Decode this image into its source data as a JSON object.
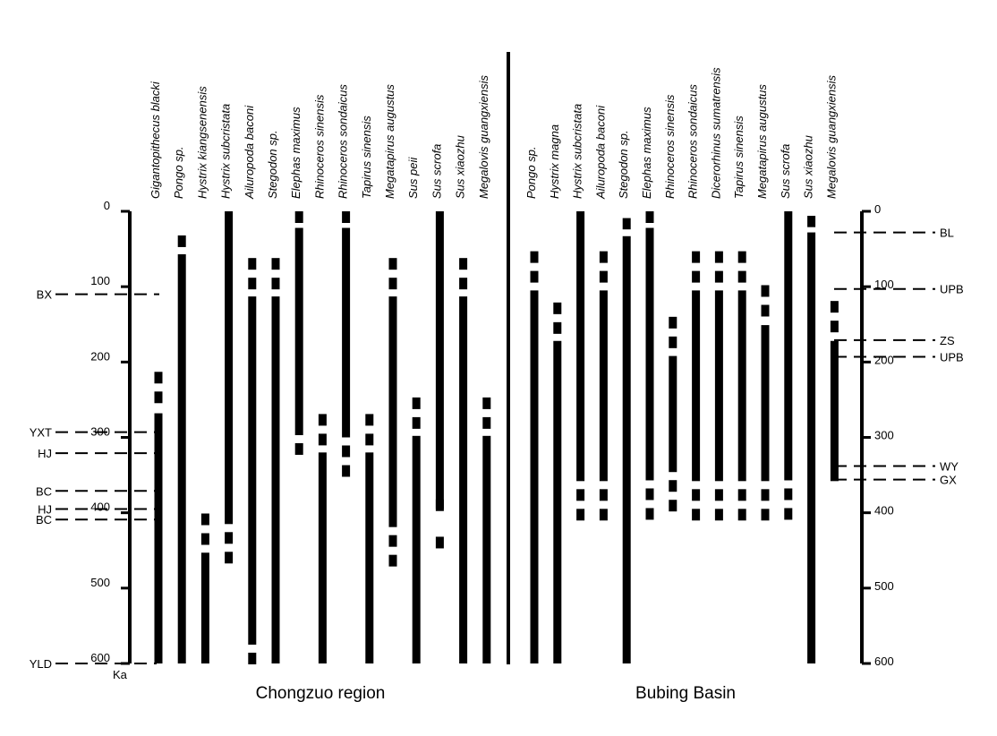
{
  "chart_data": {
    "type": "range-chart",
    "unit_label": "Ka",
    "ylim": [
      0,
      600
    ],
    "y_ticks": [
      0,
      100,
      200,
      300,
      400,
      500,
      600
    ],
    "colors": {
      "bars": "#000000",
      "background": "#ffffff"
    },
    "panels": [
      {
        "name": "Chongzuo region",
        "axis_side": "left",
        "reference_levels": [
          {
            "label": "BX",
            "ka": 110
          },
          {
            "label": "YXT",
            "ka": 293
          },
          {
            "label": "HJ",
            "ka": 321
          },
          {
            "label": "BC",
            "ka": 371
          },
          {
            "label": "HJ",
            "ka": 395
          },
          {
            "label": "BC",
            "ka": 409
          },
          {
            "label": "YLD",
            "ka": 600
          }
        ],
        "taxa": [
          {
            "name": "Gigantopithecus blacki",
            "dashed_top": [
              213,
              268
            ],
            "solid": [
              268,
              600
            ]
          },
          {
            "name": "Pongo sp.",
            "dashed_top": [
              32,
              57
            ],
            "solid": [
              57,
              600
            ]
          },
          {
            "name": "Hystrix kiangsenensis",
            "dashed_top": [
              401,
              453
            ],
            "solid": [
              453,
              600
            ]
          },
          {
            "name": "Hystrix subcristata",
            "solid": [
              0,
              415
            ],
            "dashed_bottom": [
              415,
              469
            ]
          },
          {
            "name": "Ailuropoda baconi",
            "dashed_top": [
              62,
              113
            ],
            "solid": [
              113,
              575
            ],
            "dashed_bottom": [
              575,
              600
            ]
          },
          {
            "name": "Stegodon sp.",
            "dashed_top": [
              62,
              113
            ],
            "solid": [
              113,
              600
            ]
          },
          {
            "name": "Elephas maximus",
            "dashed_top": [
              0,
              22
            ],
            "solid": [
              22,
              297
            ],
            "dashed_bottom": [
              297,
              348
            ]
          },
          {
            "name": "Rhinoceros sinensis",
            "dashed_top": [
              269,
              320
            ],
            "solid": [
              320,
              600
            ]
          },
          {
            "name": "Rhinoceros sondaicus",
            "dashed_top": [
              0,
              22
            ],
            "solid": [
              22,
              300
            ],
            "dashed_bottom": [
              300,
              352
            ]
          },
          {
            "name": "Tapirus sinensis",
            "dashed_top": [
              269,
              320
            ],
            "solid": [
              320,
              600
            ]
          },
          {
            "name": "Megatapirus augustus",
            "dashed_top": [
              62,
              113
            ],
            "solid": [
              113,
              419
            ],
            "dashed_bottom": [
              419,
              473
            ]
          },
          {
            "name": "Sus peii",
            "dashed_top": [
              247,
              298
            ],
            "solid": [
              298,
              600
            ]
          },
          {
            "name": "Sus scrofa",
            "solid": [
              0,
              395
            ],
            "dashed_bottom": [
              395,
              450
            ]
          },
          {
            "name": "Sus xiaozhu",
            "dashed_top": [
              62,
              113
            ],
            "solid": [
              113,
              600
            ]
          },
          {
            "name": "Megalovis guangxiensis",
            "dashed_top": [
              247,
              298
            ],
            "solid": [
              298,
              600
            ]
          }
        ]
      },
      {
        "name": "Bubing Basin",
        "axis_side": "right",
        "reference_levels": [
          {
            "label": "BL",
            "ka": 28
          },
          {
            "label": "UPB",
            "ka": 103
          },
          {
            "label": "ZS",
            "ka": 171
          },
          {
            "label": "UPB",
            "ka": 193
          },
          {
            "label": "WY",
            "ka": 338
          },
          {
            "label": "GX",
            "ka": 356
          }
        ],
        "taxa": [
          {
            "name": "Pongo sp.",
            "dashed_top": [
              53,
              105
            ],
            "solid": [
              105,
              600
            ]
          },
          {
            "name": "Hystrix magna",
            "dashed_top": [
              121,
              172
            ],
            "solid": [
              172,
              600
            ]
          },
          {
            "name": "Hystrix subcristata",
            "solid": [
              0,
              358
            ],
            "dashed_bottom": [
              358,
              410
            ]
          },
          {
            "name": "Ailuropoda baconi",
            "dashed_top": [
              53,
              105
            ],
            "solid": [
              105,
              358
            ],
            "dashed_bottom": [
              358,
              410
            ]
          },
          {
            "name": "Stegodon sp.",
            "dashed_top": [
              9,
              24
            ],
            "solid": [
              33,
              600
            ]
          },
          {
            "name": "Elephas maximus",
            "dashed_top": [
              0,
              22
            ],
            "solid": [
              22,
              357
            ],
            "dashed_bottom": [
              357,
              410
            ]
          },
          {
            "name": "Rhinoceros sinensis",
            "dashed_top": [
              140,
              192
            ],
            "solid": [
              192,
              346
            ],
            "dashed_bottom": [
              346,
              398
            ]
          },
          {
            "name": "Rhinoceros sondaicus",
            "dashed_top": [
              53,
              105
            ],
            "solid": [
              105,
              358
            ],
            "dashed_bottom": [
              358,
              410
            ]
          },
          {
            "name": "Dicerorhinus sumatrensis",
            "dashed_top": [
              53,
              105
            ],
            "solid": [
              105,
              358
            ],
            "dashed_bottom": [
              358,
              410
            ]
          },
          {
            "name": "Tapirus sinensis",
            "dashed_top": [
              53,
              105
            ],
            "solid": [
              105,
              358
            ],
            "dashed_bottom": [
              358,
              410
            ]
          },
          {
            "name": "Megatapirus augustus",
            "dashed_top": [
              98,
              151
            ],
            "solid": [
              151,
              358
            ],
            "dashed_bottom": [
              358,
              410
            ]
          },
          {
            "name": "Sus scrofa",
            "solid": [
              0,
              357
            ],
            "dashed_bottom": [
              357,
              410
            ]
          },
          {
            "name": "Sus xiaozhu",
            "dashed_top": [
              6,
              21
            ],
            "solid": [
              28,
              600
            ]
          },
          {
            "name": "Megalovis guangxiensis",
            "dashed_top": [
              119,
              170
            ],
            "solid": [
              172,
              358
            ]
          }
        ]
      }
    ]
  }
}
